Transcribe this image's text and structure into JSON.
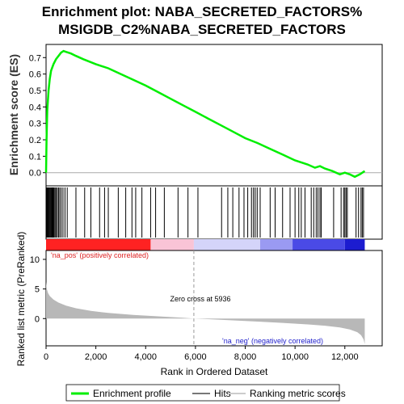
{
  "chart_data": {
    "type": "line",
    "title_line1": "Enrichment plot: NABA_SECRETED_FACTORS%",
    "title_line2": "MSIGDB_C2%NABA_SECRETED_FACTORS",
    "xlabel": "Rank in Ordered Dataset",
    "ylabel_top": "Enrichment score (ES)",
    "ylabel_bottom": "Ranked list metric (PreRanked)",
    "xlim": [
      0,
      13500
    ],
    "ylim_es": [
      -0.08,
      0.78
    ],
    "ylim_metric": [
      -4.6,
      11.5
    ],
    "x_ticks": [
      0,
      2000,
      4000,
      6000,
      8000,
      10000,
      12000
    ],
    "x_tick_labels": [
      "0",
      "2,000",
      "4,000",
      "6,000",
      "8,000",
      "10,000",
      "12,000"
    ],
    "es_ticks": [
      0.0,
      0.1,
      0.2,
      0.3,
      0.4,
      0.5,
      0.6,
      0.7
    ],
    "es_tick_labels": [
      "0.0",
      "0.1",
      "0.2",
      "0.3",
      "0.4",
      "0.5",
      "0.6",
      "0.7"
    ],
    "metric_ticks": [
      0,
      5,
      10
    ],
    "metric_tick_labels": [
      "0",
      "5",
      "10"
    ],
    "n_genes": 12800,
    "zero_cross": 5936,
    "zero_cross_label": "Zero cross at 5936",
    "pos_label": "'na_pos' (positively correlated)",
    "neg_label": "'na_neg' (negatively correlated)",
    "enrichment_profile": {
      "name": "Enrichment profile",
      "x": [
        0,
        20,
        50,
        100,
        150,
        200,
        300,
        400,
        500,
        600,
        700,
        800,
        1000,
        1200,
        1500,
        2000,
        2500,
        3000,
        3500,
        4000,
        4500,
        5000,
        5500,
        6000,
        6500,
        7000,
        7500,
        8000,
        8500,
        9000,
        9500,
        10000,
        10500,
        10800,
        11000,
        11200,
        11500,
        11800,
        12000,
        12200,
        12400,
        12600,
        12800
      ],
      "y": [
        0.0,
        0.2,
        0.38,
        0.5,
        0.57,
        0.62,
        0.66,
        0.69,
        0.71,
        0.73,
        0.74,
        0.735,
        0.725,
        0.71,
        0.69,
        0.66,
        0.635,
        0.6,
        0.565,
        0.53,
        0.49,
        0.45,
        0.41,
        0.37,
        0.33,
        0.29,
        0.25,
        0.21,
        0.18,
        0.145,
        0.11,
        0.075,
        0.05,
        0.03,
        0.04,
        0.025,
        0.01,
        -0.01,
        0.0,
        -0.01,
        -0.025,
        -0.01,
        0.01
      ]
    },
    "hits": [
      20,
      50,
      80,
      110,
      140,
      170,
      200,
      230,
      260,
      290,
      320,
      360,
      400,
      450,
      500,
      550,
      610,
      680,
      760,
      850,
      1200,
      1550,
      1800,
      2150,
      2350,
      2500,
      2900,
      3200,
      3450,
      3600,
      3850,
      4200,
      4400,
      4750,
      5300,
      5700,
      6100,
      7050,
      7300,
      7500,
      7750,
      7950,
      8100,
      8250,
      8330,
      8400,
      8480,
      8600,
      9000,
      9200,
      9500,
      9800,
      10000,
      10150,
      10250,
      10400,
      10650,
      10750,
      10850,
      10920,
      11000,
      11050,
      11550,
      11850,
      11950,
      12000,
      12050,
      12100,
      12450,
      12550,
      12650,
      12700,
      12750
    ],
    "metric_profile": {
      "x": [
        0,
        30,
        80,
        150,
        300,
        500,
        800,
        1200,
        1800,
        2500,
        3500,
        4500,
        5500,
        5936,
        6500,
        7500,
        8500,
        9500,
        10500,
        11200,
        11800,
        12200,
        12500,
        12650,
        12750,
        12800
      ],
      "y": [
        6.2,
        5.0,
        4.3,
        3.8,
        3.2,
        2.7,
        2.2,
        1.75,
        1.3,
        0.95,
        0.62,
        0.38,
        0.15,
        0.0,
        -0.1,
        -0.3,
        -0.5,
        -0.72,
        -0.98,
        -1.2,
        -1.5,
        -1.85,
        -2.3,
        -2.8,
        -3.5,
        -4.3
      ]
    },
    "color_bar": [
      {
        "from": 0,
        "to": 4200,
        "color": "#f22"
      },
      {
        "from": 4200,
        "to": 5936,
        "color": "#f9c4d6"
      },
      {
        "from": 5936,
        "to": 8600,
        "color": "#d4d4f9"
      },
      {
        "from": 8600,
        "to": 9900,
        "color": "#9a9af2"
      },
      {
        "from": 9900,
        "to": 12000,
        "color": "#4a4ae6"
      },
      {
        "from": 12000,
        "to": 12800,
        "color": "#1c1cd0"
      }
    ],
    "legend": [
      {
        "name": "Enrichment profile",
        "color": "#00ee00"
      },
      {
        "name": "Hits",
        "color": "#777777"
      },
      {
        "name": "Ranking metric scores",
        "color": "#cccccc"
      }
    ],
    "grid": false,
    "legend_position": "bottom"
  }
}
